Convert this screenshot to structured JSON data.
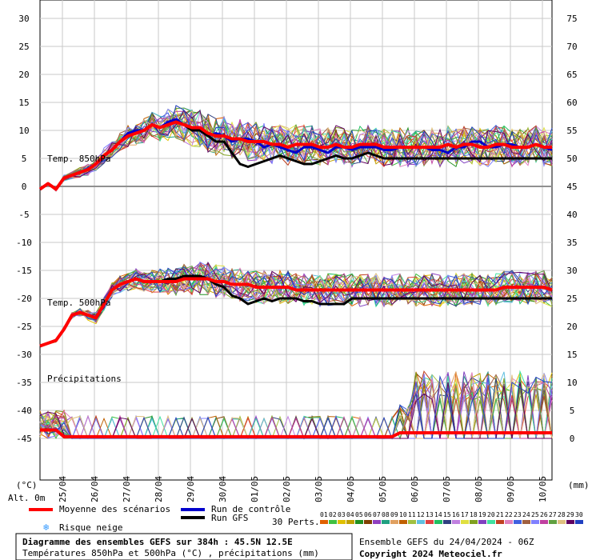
{
  "chart_data": {
    "type": "line",
    "title": "Diagramme des ensembles GEFS sur 384h : 45.5N 12.5E",
    "subtitle": "Températures 850hPa et 500hPa (°C) , précipitations (mm)",
    "run_info": "Ensemble GEFS du 24/04/2024 - 06Z",
    "copyright": "Copyright 2024 Meteociel.fr",
    "altitude_label": "Alt. 0m",
    "left_unit": "(°C)",
    "right_unit": "(mm)",
    "left_ticks": [
      "30",
      "25",
      "20",
      "15",
      "10",
      "5",
      "0",
      "-5",
      "-10",
      "-15",
      "-20",
      "-25",
      "-30",
      "-35",
      "-40",
      "-45"
    ],
    "right_ticks": [
      "75",
      "70",
      "65",
      "60",
      "55",
      "50",
      "45",
      "40",
      "35",
      "30",
      "25",
      "20",
      "15",
      "10",
      "5",
      "0"
    ],
    "ylim_left": [
      -52,
      32
    ],
    "x_dates": [
      "25/04",
      "26/04",
      "27/04",
      "28/04",
      "29/04",
      "30/04",
      "01/05",
      "02/05",
      "03/05",
      "04/05",
      "05/05",
      "06/05",
      "07/05",
      "08/05",
      "09/05",
      "10/05"
    ],
    "xlim_hours": [
      0,
      384
    ],
    "section_labels": {
      "t850": "Temp. 850hPa",
      "t500": "Temp. 500hPa",
      "precip": "Précipitations"
    },
    "legend": {
      "mean": "Moyenne des scénarios",
      "control": "Run de contrôle",
      "gfs": "Run GFS",
      "snow": "Risque neige",
      "perts_label": "30 Perts.",
      "pert_ids": [
        "01",
        "02",
        "03",
        "04",
        "05",
        "06",
        "07",
        "08",
        "09",
        "10",
        "11",
        "12",
        "13",
        "14",
        "15",
        "16",
        "17",
        "18",
        "19",
        "20",
        "21",
        "22",
        "23",
        "24",
        "25",
        "26",
        "27",
        "28",
        "29",
        "30"
      ]
    },
    "colors": {
      "mean": "#ff0000",
      "control": "#0000cc",
      "gfs": "#000000",
      "snow": "#3399ff",
      "perts": [
        "#e06000",
        "#40c040",
        "#e0c000",
        "#c0a000",
        "#209020",
        "#804000",
        "#9040c0",
        "#20a080",
        "#e0a060",
        "#c06000",
        "#a0c040",
        "#60c0e0",
        "#e04040",
        "#20c060",
        "#304080",
        "#c080e0",
        "#e0e040",
        "#80a020",
        "#8040c0",
        "#40e0a0",
        "#c04020",
        "#e080c0",
        "#4060e0",
        "#a06040",
        "#8080ff",
        "#c040a0",
        "#60a040",
        "#e0c080",
        "#600060",
        "#2040c0"
      ]
    },
    "x_hours": [
      0,
      6,
      12,
      18,
      24,
      30,
      36,
      42,
      48,
      54,
      60,
      66,
      72,
      78,
      84,
      90,
      96,
      102,
      108,
      114,
      120,
      126,
      132,
      138,
      144,
      150,
      156,
      162,
      168,
      174,
      180,
      186,
      192,
      198,
      204,
      210,
      216,
      222,
      228,
      234,
      240,
      246,
      252,
      258,
      264,
      270,
      276,
      282,
      288,
      294,
      300,
      306,
      312,
      318,
      324,
      330,
      336,
      342,
      348,
      354,
      360,
      366,
      372,
      378,
      384
    ],
    "series": [
      {
        "name": "Moyenne des scénarios",
        "level": "850hPa",
        "values": [
          -0.5,
          0.5,
          -0.5,
          1.5,
          2,
          2.5,
          3,
          4,
          5.5,
          6.5,
          8,
          9,
          9.5,
          10,
          11,
          10.5,
          11,
          11.5,
          11,
          10.5,
          10.5,
          9.5,
          9,
          9,
          8.5,
          8.5,
          8,
          8,
          8,
          7.5,
          7.5,
          7,
          7.5,
          7.5,
          7.5,
          7,
          7,
          7.5,
          7,
          7,
          7.5,
          7.5,
          7.5,
          7,
          7,
          7,
          7,
          7,
          7,
          7,
          7,
          7.5,
          7,
          7.5,
          7.5,
          7,
          7,
          7.5,
          7.5,
          7,
          7,
          7,
          7.5,
          7,
          7
        ]
      },
      {
        "name": "Run de contrôle",
        "level": "850hPa",
        "values": [
          -0.5,
          0.5,
          -0.5,
          1.5,
          2,
          2.5,
          3,
          4,
          5.5,
          6.5,
          8,
          9.5,
          10,
          10,
          11,
          10.5,
          11.5,
          12,
          11,
          10.5,
          10,
          9,
          9.5,
          9,
          8,
          8.5,
          8.5,
          8,
          7,
          7.5,
          7,
          6.5,
          6,
          7,
          7,
          6.5,
          6,
          7,
          7,
          6.5,
          7,
          7,
          7,
          6.5,
          6.5,
          7,
          7,
          7,
          7,
          6.5,
          6.5,
          6,
          7,
          7,
          8,
          8,
          7,
          7,
          7.5,
          7.5,
          7,
          7,
          7.5,
          7,
          6.5
        ]
      },
      {
        "name": "Run GFS",
        "level": "850hPa",
        "values": [
          -0.5,
          0.5,
          -0.5,
          1.5,
          2,
          2.5,
          3,
          4,
          5.5,
          6.5,
          8,
          9,
          9.5,
          10,
          11,
          10.5,
          11,
          11.5,
          11,
          10,
          10,
          9,
          8,
          8,
          6,
          4,
          3.5,
          4,
          4.5,
          5,
          5.5,
          5,
          4.5,
          4,
          4,
          4.5,
          5,
          5.5,
          5,
          5,
          5.5,
          6,
          5.5,
          5,
          5,
          5,
          5,
          5,
          5,
          5,
          5,
          5,
          5,
          5,
          5,
          5,
          5,
          5,
          5,
          5,
          5,
          5,
          5,
          5,
          5
        ]
      },
      {
        "name": "Moyenne des scénarios",
        "level": "500hPa",
        "values": [
          -28.5,
          -28,
          -27.5,
          -25.5,
          -23,
          -22.5,
          -23,
          -23.5,
          -21,
          -18.5,
          -17.5,
          -17,
          -16.5,
          -17,
          -17,
          -17,
          -17,
          -17,
          -16.5,
          -16.5,
          -16.5,
          -16.5,
          -17,
          -17,
          -17.5,
          -17.5,
          -17.5,
          -18,
          -18,
          -18,
          -18,
          -18,
          -18.5,
          -18.5,
          -18.5,
          -18.5,
          -18.5,
          -18.5,
          -18.5,
          -18.5,
          -18.5,
          -18.5,
          -18.5,
          -18.5,
          -18.5,
          -18.5,
          -18.5,
          -18.5,
          -18.5,
          -18.5,
          -18.5,
          -18.5,
          -18.5,
          -18.5,
          -18.5,
          -18.5,
          -18.5,
          -18.5,
          -18,
          -18,
          -18,
          -18,
          -18,
          -18,
          -18.5
        ]
      },
      {
        "name": "Run GFS",
        "level": "500hPa",
        "values": [
          -28.5,
          -28,
          -27.5,
          -25.5,
          -23,
          -22.5,
          -23,
          -23.5,
          -21,
          -18.5,
          -17.5,
          -17,
          -16.5,
          -17,
          -17,
          -17,
          -16.5,
          -16.5,
          -16,
          -16,
          -16,
          -16.5,
          -17.5,
          -18,
          -19.5,
          -20,
          -21,
          -20.5,
          -20,
          -20.5,
          -20,
          -20,
          -20,
          -20.5,
          -20.5,
          -21,
          -21,
          -21,
          -21,
          -20,
          -20,
          -20,
          -20,
          -20,
          -20,
          -20,
          -20,
          -20,
          -20,
          -20,
          -20,
          -20,
          -20,
          -20,
          -20,
          -20,
          -20,
          -20,
          -20,
          -20,
          -20,
          -20,
          -20,
          -20,
          -20
        ]
      }
    ]
  }
}
